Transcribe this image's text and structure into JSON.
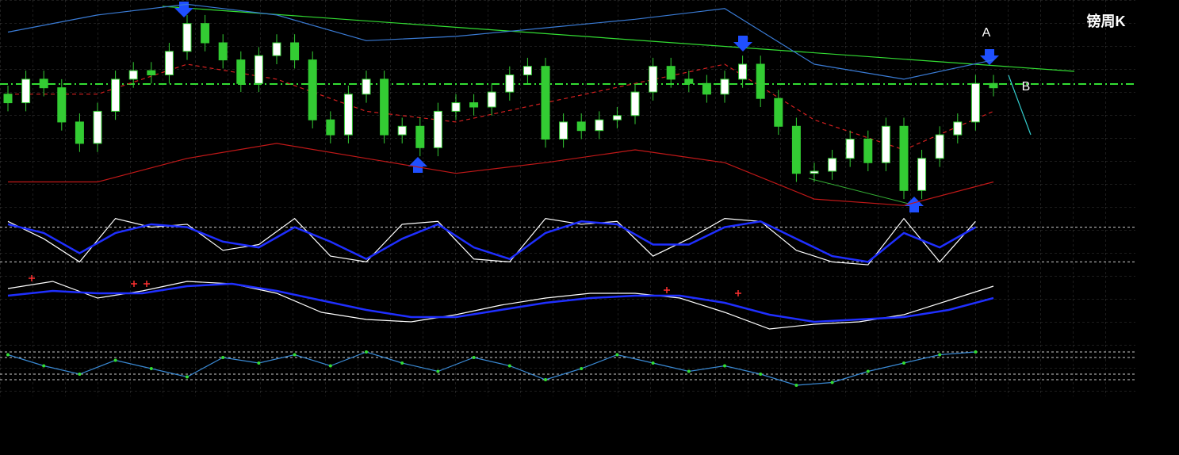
{
  "chart_data": [
    {
      "type": "candlestick",
      "title": "镑周K",
      "annotations": [
        "A",
        "B"
      ],
      "xlim": [
        0,
        55
      ],
      "ylim": [
        0,
        100
      ],
      "grid": true,
      "up_color": "#ffffff",
      "down_color": "#33cc33",
      "wick_color": "#33cc33",
      "open": [
        56,
        52,
        63,
        59,
        43,
        33,
        48,
        63,
        67,
        65,
        76,
        89,
        80,
        72,
        61,
        74,
        80,
        72,
        44,
        37,
        56,
        63,
        37,
        41,
        31,
        48,
        52,
        50,
        57,
        65,
        69,
        35,
        43,
        39,
        44,
        46,
        57,
        69,
        63,
        61,
        56,
        63,
        70,
        54,
        41,
        19,
        20,
        26,
        35,
        24,
        41,
        11,
        26,
        37,
        43,
        61
      ],
      "high": [
        60,
        67,
        67,
        63,
        47,
        52,
        67,
        71,
        71,
        80,
        93,
        93,
        84,
        76,
        78,
        84,
        84,
        76,
        48,
        60,
        67,
        67,
        45,
        45,
        52,
        56,
        56,
        61,
        69,
        73,
        73,
        47,
        47,
        48,
        50,
        61,
        73,
        73,
        67,
        65,
        67,
        74,
        74,
        58,
        45,
        24,
        30,
        39,
        39,
        45,
        45,
        30,
        41,
        47,
        65,
        65
      ],
      "low": [
        48,
        48,
        55,
        39,
        29,
        29,
        44,
        59,
        61,
        61,
        72,
        76,
        68,
        57,
        57,
        70,
        68,
        40,
        33,
        33,
        52,
        33,
        33,
        27,
        27,
        44,
        46,
        46,
        53,
        61,
        31,
        31,
        35,
        35,
        40,
        42,
        53,
        59,
        57,
        52,
        52,
        59,
        50,
        37,
        15,
        15,
        16,
        22,
        20,
        20,
        7,
        7,
        22,
        33,
        39,
        55
      ],
      "close": [
        52,
        63,
        59,
        43,
        33,
        48,
        63,
        67,
        65,
        76,
        89,
        80,
        72,
        61,
        74,
        80,
        72,
        44,
        37,
        56,
        63,
        37,
        41,
        31,
        48,
        52,
        50,
        57,
        65,
        69,
        35,
        43,
        39,
        44,
        46,
        57,
        69,
        63,
        61,
        56,
        63,
        70,
        54,
        41,
        19,
        20,
        26,
        35,
        24,
        41,
        11,
        26,
        37,
        43,
        61,
        59
      ],
      "series": [
        {
          "color": "#3a7bd5",
          "x": [
            0,
            5,
            10,
            15,
            20,
            25,
            30,
            35,
            40,
            45,
            50,
            55
          ],
          "values": [
            85,
            93,
            98,
            93,
            81,
            83,
            87,
            91,
            96,
            70,
            63,
            72
          ]
        },
        {
          "color": "#d42020",
          "dash": true,
          "x": [
            0,
            5,
            10,
            15,
            20,
            25,
            30,
            35,
            40,
            45,
            50,
            55
          ],
          "values": [
            56,
            56,
            70,
            63,
            48,
            43,
            52,
            61,
            70,
            44,
            30,
            48
          ]
        },
        {
          "color": "#c01818",
          "x": [
            0,
            5,
            10,
            15,
            20,
            25,
            30,
            35,
            40,
            45,
            50,
            55
          ],
          "values": [
            15,
            15,
            26,
            33,
            26,
            19,
            24,
            30,
            24,
            7,
            4,
            15
          ]
        }
      ]
    },
    {
      "type": "line",
      "xlim": [
        0,
        55
      ],
      "ylim": [
        0,
        100
      ],
      "levels": [
        80,
        20
      ],
      "series": [
        {
          "color": "#ffffff",
          "x": [
            0,
            2,
            4,
            6,
            8,
            10,
            12,
            14,
            16,
            18,
            20,
            22,
            24,
            26,
            28,
            30,
            32,
            34,
            36,
            38,
            40,
            42,
            44,
            46,
            48,
            50,
            52,
            54
          ],
          "values": [
            90,
            60,
            20,
            95,
            80,
            85,
            40,
            50,
            95,
            30,
            20,
            85,
            90,
            25,
            20,
            95,
            85,
            90,
            30,
            60,
            95,
            90,
            40,
            20,
            15,
            95,
            20,
            90
          ]
        },
        {
          "color": "#1f2fff",
          "x": [
            0,
            2,
            4,
            6,
            8,
            10,
            12,
            14,
            16,
            18,
            20,
            22,
            24,
            26,
            28,
            30,
            32,
            34,
            36,
            38,
            40,
            42,
            44,
            46,
            48,
            50,
            52,
            54
          ],
          "values": [
            85,
            70,
            35,
            70,
            85,
            80,
            55,
            45,
            80,
            55,
            25,
            60,
            85,
            45,
            25,
            70,
            90,
            85,
            50,
            50,
            80,
            90,
            60,
            30,
            20,
            70,
            45,
            80
          ]
        }
      ]
    },
    {
      "type": "line",
      "xlim": [
        0,
        55
      ],
      "ylim": [
        -1.5,
        1.5
      ],
      "series": [
        {
          "color": "#ffffff",
          "x": [
            0,
            2.5,
            5,
            7.5,
            10,
            12.5,
            15,
            17.5,
            20,
            22.5,
            25,
            27.5,
            30,
            32.5,
            35,
            37.5,
            40,
            42.5,
            45,
            47.5,
            50,
            52.5,
            55
          ],
          "values": [
            0.7,
            1,
            0.3,
            0.6,
            1,
            0.9,
            0.5,
            -0.3,
            -0.6,
            -0.7,
            -0.4,
            0,
            0.3,
            0.5,
            0.5,
            0.3,
            -0.3,
            -1,
            -0.8,
            -0.7,
            -0.4,
            0.2,
            0.8
          ]
        },
        {
          "color": "#1f2fff",
          "x": [
            0,
            2.5,
            5,
            7.5,
            10,
            12.5,
            15,
            17.5,
            20,
            22.5,
            25,
            27.5,
            30,
            32.5,
            35,
            37.5,
            40,
            42.5,
            45,
            47.5,
            50,
            52.5,
            55
          ],
          "values": [
            0.4,
            0.6,
            0.5,
            0.5,
            0.8,
            0.9,
            0.6,
            0.2,
            -0.2,
            -0.5,
            -0.5,
            -0.2,
            0.1,
            0.3,
            0.4,
            0.4,
            0.1,
            -0.4,
            -0.7,
            -0.6,
            -0.5,
            -0.2,
            0.3
          ]
        }
      ]
    },
    {
      "type": "line",
      "xlim": [
        0,
        55
      ],
      "ylim": [
        0,
        100
      ],
      "levels": [
        80,
        70,
        40,
        30
      ],
      "series": [
        {
          "color": "#3a8ad5",
          "markers": true,
          "marker_color": "#33dd33",
          "x": [
            0,
            2,
            4,
            6,
            8,
            10,
            12,
            14,
            16,
            18,
            20,
            22,
            24,
            26,
            28,
            30,
            32,
            34,
            36,
            38,
            40,
            42,
            44,
            46,
            48,
            50,
            52,
            54
          ],
          "values": [
            75,
            55,
            40,
            65,
            50,
            35,
            70,
            60,
            75,
            55,
            80,
            60,
            45,
            70,
            55,
            30,
            50,
            75,
            60,
            45,
            55,
            40,
            20,
            25,
            45,
            60,
            75,
            80
          ]
        }
      ]
    }
  ]
}
